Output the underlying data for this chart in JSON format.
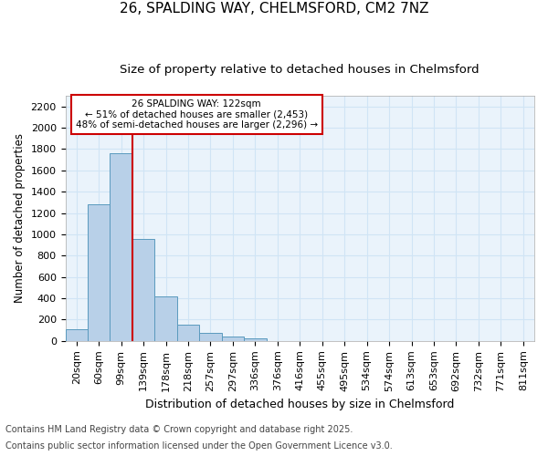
{
  "title1": "26, SPALDING WAY, CHELMSFORD, CM2 7NZ",
  "title2": "Size of property relative to detached houses in Chelmsford",
  "xlabel": "Distribution of detached houses by size in Chelmsford",
  "ylabel": "Number of detached properties",
  "categories": [
    "20sqm",
    "60sqm",
    "99sqm",
    "139sqm",
    "178sqm",
    "218sqm",
    "257sqm",
    "297sqm",
    "336sqm",
    "376sqm",
    "416sqm",
    "455sqm",
    "495sqm",
    "534sqm",
    "574sqm",
    "613sqm",
    "653sqm",
    "692sqm",
    "732sqm",
    "771sqm",
    "811sqm"
  ],
  "values": [
    110,
    1280,
    1760,
    960,
    420,
    150,
    75,
    40,
    25,
    0,
    0,
    0,
    0,
    0,
    0,
    0,
    0,
    0,
    0,
    0,
    0
  ],
  "bar_color": "#b8d0e8",
  "bar_edge_color": "#5a9abe",
  "background_color": "#eaf3fb",
  "grid_color": "#d0e4f5",
  "vline_color": "#cc0000",
  "annotation_text": "26 SPALDING WAY: 122sqm\n← 51% of detached houses are smaller (2,453)\n48% of semi-detached houses are larger (2,296) →",
  "annotation_box_color": "#cc0000",
  "annotation_bg": "#ffffff",
  "footer1": "Contains HM Land Registry data © Crown copyright and database right 2025.",
  "footer2": "Contains public sector information licensed under the Open Government Licence v3.0.",
  "ylim": [
    0,
    2300
  ],
  "yticks": [
    0,
    200,
    400,
    600,
    800,
    1000,
    1200,
    1400,
    1600,
    1800,
    2000,
    2200
  ],
  "fig_facecolor": "#ffffff",
  "title_fontsize": 11,
  "subtitle_fontsize": 9.5,
  "ylabel_fontsize": 8.5,
  "xlabel_fontsize": 9,
  "tick_fontsize": 8,
  "footer_fontsize": 7
}
